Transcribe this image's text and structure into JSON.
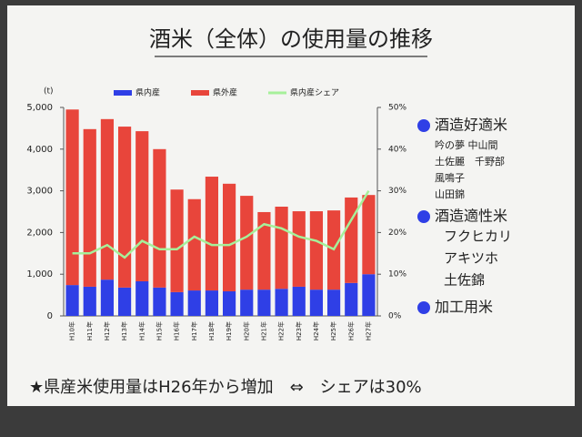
{
  "chart_data": {
    "type": "bar",
    "stacked": true,
    "title": "酒米（全体）の使用量の推移",
    "y_unit": "(t)",
    "categories": [
      "H10年",
      "H11年",
      "H12年",
      "H13年",
      "H14年",
      "H15年",
      "H16年",
      "H17年",
      "H18年",
      "H19年",
      "H20年",
      "H21年",
      "H22年",
      "H23年",
      "H24年",
      "H25年",
      "H26年",
      "H27年"
    ],
    "series": [
      {
        "name": "県内産",
        "color": "#2f3fe6",
        "values": [
          740,
          700,
          870,
          680,
          830,
          680,
          570,
          610,
          610,
          590,
          630,
          630,
          650,
          700,
          630,
          630,
          790,
          1000
        ]
      },
      {
        "name": "県外産",
        "color": "#e8453b",
        "values": [
          4210,
          3780,
          3850,
          3860,
          3600,
          3320,
          2460,
          2190,
          2730,
          2580,
          2250,
          1860,
          1970,
          1810,
          1880,
          1900,
          2050,
          1900
        ]
      },
      {
        "name": "県内産シェア",
        "color": "#a6f09a",
        "type": "line",
        "axis": "y2",
        "values": [
          15,
          15,
          17,
          14,
          18,
          16,
          16,
          19,
          17,
          17,
          19,
          22,
          21,
          19,
          18,
          16,
          23,
          30
        ]
      }
    ],
    "ylim": [
      0,
      5000
    ],
    "yticks": [
      0,
      {
        "value": 1000,
        "label": "1,000"
      },
      {
        "value": 2000,
        "label": "2,000"
      },
      {
        "value": 3000,
        "label": "3,000"
      },
      {
        "value": 4000,
        "label": "4,000"
      },
      {
        "value": 5000,
        "label": "5,000"
      }
    ],
    "y2lim": [
      0,
      50
    ],
    "y2ticks": [
      {
        "value": 0,
        "label": "0%"
      },
      {
        "value": 10,
        "label": "10%"
      },
      {
        "value": 20,
        "label": "20%"
      },
      {
        "value": 30,
        "label": "30%"
      },
      {
        "value": 40,
        "label": "40%"
      },
      {
        "value": 50,
        "label": "50%"
      }
    ],
    "legend": "top"
  },
  "side_notes": [
    {
      "text": "酒造好適米",
      "bullet": true,
      "items": [
        "吟の夢 中山間",
        "土佐麗　千野部",
        "風鳴子",
        "山田錦"
      ]
    },
    {
      "text": "酒造適性米",
      "bullet": true,
      "items": [
        "フクヒカリ",
        "アキツホ",
        "土佐錦"
      ]
    },
    {
      "text": "加工用米",
      "bullet": true,
      "items": []
    }
  ],
  "footnote": "★県産米使用量はH26年から増加　⇔　シェアは30%"
}
